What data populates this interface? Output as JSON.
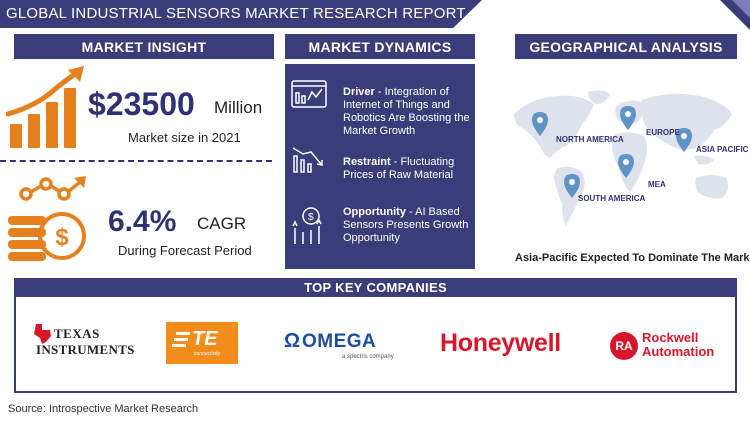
{
  "title": "GLOBAL INDUSTRIAL SENSORS MARKET RESEARCH REPORT",
  "sections": {
    "market_insight": "MARKET INSIGHT",
    "market_dynamics": "MARKET DYNAMICS",
    "geographical_analysis": "GEOGRAPHICAL ANALYSIS",
    "top_companies": "TOP KEY COMPANIES"
  },
  "insight": {
    "market_size_value": "$23500",
    "market_size_unit": "Million",
    "market_size_label": "Market size in 2021",
    "cagr_value": "6.4%",
    "cagr_label": "CAGR",
    "cagr_period": "During Forecast Period"
  },
  "dynamics": [
    {
      "heading": "Driver",
      "text": " - Integration of Internet of Things and Robotics Are Boosting the Market Growth",
      "icon": "analytics-icon"
    },
    {
      "heading": "Restraint",
      "text": " - Fluctuating Prices of Raw Material",
      "icon": "declining-chart-icon"
    },
    {
      "heading": "Opportunity",
      "text": " - AI Based Sensors Presents Growth Opportunity",
      "icon": "growth-idea-icon"
    }
  ],
  "geo": {
    "regions": [
      "NORTH AMERICA",
      "EUROPE",
      "ASIA PACIFIC",
      "MEA",
      "SOUTH AMERICA"
    ],
    "caption": "Asia-Pacific Expected To Dominate The Market"
  },
  "companies": {
    "texas_top": "TEXAS",
    "texas_bottom": "INSTRUMENTS",
    "te_text": "TE",
    "te_sub": "connectivity",
    "omega": "OMEGA",
    "omega_sub": "a spectris company",
    "honeywell": "Honeywell",
    "rockwell_badge": "RA",
    "rockwell_top": "Rockwell",
    "rockwell_bottom": "Automation"
  },
  "source": "Source: Introspective Market Research",
  "colors": {
    "navy": "#3b3d7a",
    "orange": "#e5801f",
    "red": "#d7162b",
    "blue": "#1c4fa3"
  }
}
